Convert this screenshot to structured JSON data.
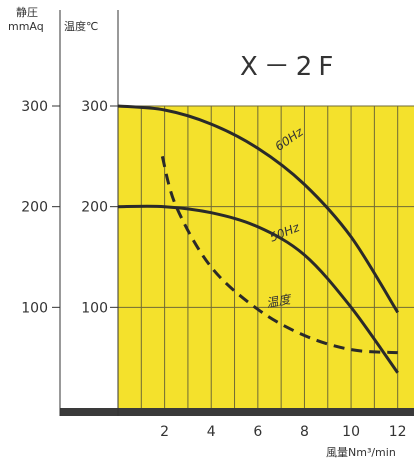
{
  "chart_data": {
    "type": "line",
    "title": "X－2F",
    "y_left_label": [
      "静圧",
      "mmAq"
    ],
    "y_left_ticks": [
      300,
      200,
      100
    ],
    "y_right_label": "温度℃",
    "y_right_ticks": [
      300,
      200,
      100
    ],
    "x_ticks": [
      2,
      4,
      6,
      8,
      10,
      12
    ],
    "x_tick_labels": [
      "2",
      "4",
      "6",
      "8",
      "10",
      "12"
    ],
    "xlabel": "風量Nm³/min",
    "xlim": [
      0,
      12
    ],
    "ylim": [
      0,
      300
    ],
    "grid": true,
    "plot_color": "#f4e12c",
    "series": [
      {
        "name": "60Hz",
        "style": "solid",
        "color": "#2a2a2a",
        "x": [
          0,
          2,
          4,
          6,
          8,
          10,
          12
        ],
        "y": [
          300,
          296,
          282,
          258,
          222,
          170,
          95
        ]
      },
      {
        "name": "50Hz",
        "style": "solid",
        "color": "#2a2a2a",
        "x": [
          0,
          2,
          4,
          6,
          8,
          10,
          12
        ],
        "y": [
          200,
          200,
          194,
          180,
          152,
          100,
          35
        ]
      },
      {
        "name": "温度",
        "style": "dashed",
        "color": "#2a2a2a",
        "x": [
          1.9,
          2.5,
          4,
          6,
          8,
          10,
          12
        ],
        "y": [
          250,
          200,
          140,
          98,
          72,
          58,
          55
        ]
      }
    ]
  }
}
